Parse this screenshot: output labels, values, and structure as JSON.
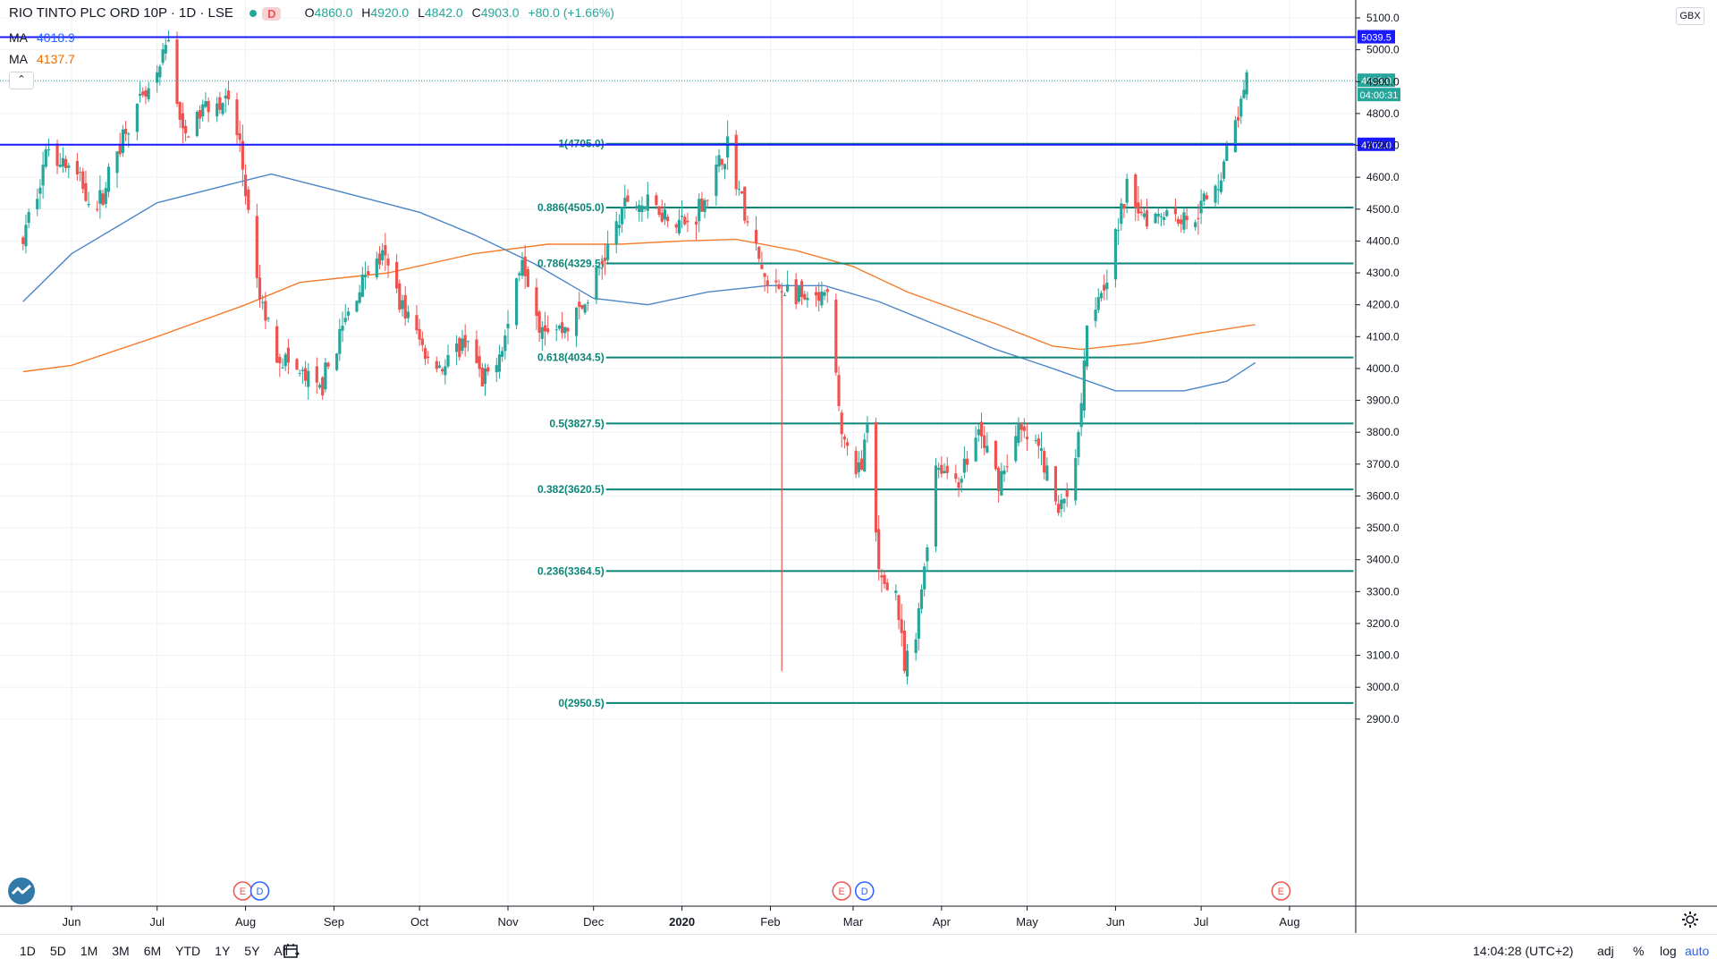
{
  "header": {
    "symbol": "RIO TINTO PLC ORD 10P · 1D · LSE",
    "badge": "D",
    "ohlc": {
      "o": "4860.0",
      "h": "4920.0",
      "l": "4842.0",
      "c": "4903.0",
      "chg": "+80.0 (+1.66%)"
    },
    "ma1": {
      "label": "MA",
      "value": "4018.9",
      "color": "#2962ff"
    },
    "ma2": {
      "label": "MA",
      "value": "4137.7",
      "color": "#ef6c00"
    },
    "collapse_icon": "chevron-up-icon"
  },
  "currency": "GBX",
  "colors": {
    "up": "#26a69a",
    "down": "#ef5350",
    "fib": "#0b8577",
    "hline": "#1a1aff",
    "ma_blue": "#4a86c8",
    "ma_orange": "#f57c2b",
    "grid": "#eef0f4"
  },
  "toolbar": {
    "ranges": [
      "1D",
      "5D",
      "1M",
      "3M",
      "6M",
      "YTD",
      "1Y",
      "5Y",
      "All"
    ],
    "time": "14:04:28 (UTC+2)",
    "adj": "adj",
    "pct": "%",
    "log": "log",
    "auto": "auto"
  },
  "chart_data": {
    "type": "candlestick",
    "ylim": [
      2870,
      5170
    ],
    "y_ticks": [
      2900,
      3000,
      3100,
      3200,
      3300,
      3400,
      3500,
      3600,
      3700,
      3800,
      3900,
      4000,
      4100,
      4200,
      4300,
      4400,
      4500,
      4600,
      4700,
      4800,
      4900,
      5000,
      5100
    ],
    "y_tick_labels": [
      "2900.0",
      "3000.0",
      "3100.0",
      "3200.0",
      "3300.0",
      "3400.0",
      "3500.0",
      "3600.0",
      "3700.0",
      "3800.0",
      "3900.0",
      "4000.0",
      "4100.0",
      "4200.0",
      "4300.0",
      "4400.0",
      "4500.0",
      "4600.0",
      "4700.0",
      "4800.0",
      "4900.0",
      "5000.0",
      "5100.0"
    ],
    "x_domain": [
      "2019-05-15",
      "2020-08-25"
    ],
    "x_ticks": [
      {
        "date": "2019-06-01",
        "label": "Jun"
      },
      {
        "date": "2019-07-01",
        "label": "Jul"
      },
      {
        "date": "2019-08-01",
        "label": "Aug"
      },
      {
        "date": "2019-09-01",
        "label": "Sep"
      },
      {
        "date": "2019-10-01",
        "label": "Oct"
      },
      {
        "date": "2019-11-01",
        "label": "Nov"
      },
      {
        "date": "2019-12-01",
        "label": "Dec"
      },
      {
        "date": "2020-01-01",
        "label": "2020"
      },
      {
        "date": "2020-02-01",
        "label": "Feb"
      },
      {
        "date": "2020-03-01",
        "label": "Mar"
      },
      {
        "date": "2020-04-01",
        "label": "Apr"
      },
      {
        "date": "2020-05-01",
        "label": "May"
      },
      {
        "date": "2020-06-01",
        "label": "Jun"
      },
      {
        "date": "2020-07-01",
        "label": "Jul"
      },
      {
        "date": "2020-08-01",
        "label": "Aug"
      }
    ],
    "price_path": [
      [
        "2019-05-15",
        4400
      ],
      [
        "2019-05-24",
        4700
      ],
      [
        "2019-06-03",
        4600
      ],
      [
        "2019-06-10",
        4500
      ],
      [
        "2019-06-20",
        4760
      ],
      [
        "2019-07-01",
        4900
      ],
      [
        "2019-07-05",
        5040
      ],
      [
        "2019-07-10",
        4720
      ],
      [
        "2019-07-20",
        4850
      ],
      [
        "2019-07-26",
        4830
      ],
      [
        "2019-07-30",
        4700
      ],
      [
        "2019-08-01",
        4550
      ],
      [
        "2019-08-05",
        4250
      ],
      [
        "2019-08-12",
        4050
      ],
      [
        "2019-08-20",
        3980
      ],
      [
        "2019-08-27",
        3930
      ],
      [
        "2019-09-05",
        4150
      ],
      [
        "2019-09-12",
        4300
      ],
      [
        "2019-09-18",
        4350
      ],
      [
        "2019-09-25",
        4200
      ],
      [
        "2019-10-03",
        4050
      ],
      [
        "2019-10-10",
        4000
      ],
      [
        "2019-10-18",
        4100
      ],
      [
        "2019-10-23",
        3940
      ],
      [
        "2019-10-31",
        4100
      ],
      [
        "2019-11-06",
        4360
      ],
      [
        "2019-11-12",
        4150
      ],
      [
        "2019-11-20",
        4120
      ],
      [
        "2019-11-28",
        4200
      ],
      [
        "2019-12-06",
        4380
      ],
      [
        "2019-12-13",
        4530
      ],
      [
        "2019-12-24",
        4500
      ],
      [
        "2020-01-03",
        4450
      ],
      [
        "2020-01-10",
        4550
      ],
      [
        "2020-01-17",
        4700
      ],
      [
        "2020-01-24",
        4450
      ],
      [
        "2020-01-31",
        4250
      ],
      [
        "2020-02-07",
        4250
      ],
      [
        "2020-02-14",
        4200
      ],
      [
        "2020-02-21",
        4220
      ],
      [
        "2020-02-26",
        3800
      ],
      [
        "2020-03-02",
        3650
      ],
      [
        "2020-03-06",
        3800
      ],
      [
        "2020-03-10",
        3350
      ],
      [
        "2020-03-16",
        3300
      ],
      [
        "2020-03-19",
        3050
      ],
      [
        "2020-03-23",
        3150
      ],
      [
        "2020-03-30",
        3700
      ],
      [
        "2020-04-07",
        3650
      ],
      [
        "2020-04-14",
        3800
      ],
      [
        "2020-04-21",
        3650
      ],
      [
        "2020-04-28",
        3800
      ],
      [
        "2020-05-05",
        3750
      ],
      [
        "2020-05-12",
        3550
      ],
      [
        "2020-05-18",
        3700
      ],
      [
        "2020-05-22",
        4150
      ],
      [
        "2020-05-29",
        4300
      ],
      [
        "2020-06-05",
        4560
      ],
      [
        "2020-06-12",
        4480
      ],
      [
        "2020-06-19",
        4500
      ],
      [
        "2020-06-26",
        4460
      ],
      [
        "2020-07-06",
        4560
      ],
      [
        "2020-07-10",
        4680
      ],
      [
        "2020-07-14",
        4800
      ],
      [
        "2020-07-16",
        4860
      ],
      [
        "2020-07-17",
        4903
      ]
    ],
    "ma_blue": [
      [
        "2019-05-15",
        4210
      ],
      [
        "2019-06-01",
        4360
      ],
      [
        "2019-07-01",
        4520
      ],
      [
        "2019-08-01",
        4590
      ],
      [
        "2019-08-10",
        4610
      ],
      [
        "2019-09-01",
        4560
      ],
      [
        "2019-10-01",
        4490
      ],
      [
        "2019-10-20",
        4420
      ],
      [
        "2019-11-10",
        4330
      ],
      [
        "2019-12-01",
        4220
      ],
      [
        "2019-12-20",
        4200
      ],
      [
        "2020-01-10",
        4240
      ],
      [
        "2020-01-31",
        4260
      ],
      [
        "2020-02-20",
        4260
      ],
      [
        "2020-03-10",
        4210
      ],
      [
        "2020-04-01",
        4130
      ],
      [
        "2020-04-20",
        4060
      ],
      [
        "2020-05-10",
        4000
      ],
      [
        "2020-06-01",
        3930
      ],
      [
        "2020-06-25",
        3930
      ],
      [
        "2020-07-10",
        3960
      ],
      [
        "2020-07-20",
        4018
      ]
    ],
    "ma_orange": [
      [
        "2019-05-15",
        3990
      ],
      [
        "2019-06-01",
        4010
      ],
      [
        "2019-07-01",
        4100
      ],
      [
        "2019-08-01",
        4200
      ],
      [
        "2019-08-20",
        4270
      ],
      [
        "2019-09-20",
        4300
      ],
      [
        "2019-10-20",
        4360
      ],
      [
        "2019-11-15",
        4390
      ],
      [
        "2019-12-10",
        4390
      ],
      [
        "2020-01-01",
        4400
      ],
      [
        "2020-01-20",
        4405
      ],
      [
        "2020-02-10",
        4370
      ],
      [
        "2020-03-01",
        4320
      ],
      [
        "2020-03-20",
        4240
      ],
      [
        "2020-04-20",
        4140
      ],
      [
        "2020-05-10",
        4070
      ],
      [
        "2020-05-20",
        4060
      ],
      [
        "2020-06-10",
        4080
      ],
      [
        "2020-06-30",
        4110
      ],
      [
        "2020-07-20",
        4138
      ]
    ],
    "horizontal_lines": [
      {
        "price": 5039.5,
        "label": "5039.5",
        "kind": "solid"
      },
      {
        "price": 4702.0,
        "label": "4702.0",
        "kind": "solid"
      },
      {
        "price": 4903.0,
        "label": "4903.0",
        "kind": "dotted"
      }
    ],
    "countdown": "04:00:31",
    "fib_levels": [
      {
        "price": 4705.0,
        "label": "1(4705.0)"
      },
      {
        "price": 4505.0,
        "label": "0.886(4505.0)"
      },
      {
        "price": 4329.5,
        "label": "0.786(4329.5)"
      },
      {
        "price": 4034.5,
        "label": "0.618(4034.5)"
      },
      {
        "price": 3827.5,
        "label": "0.5(3827.5)"
      },
      {
        "price": 3620.5,
        "label": "0.382(3620.5)"
      },
      {
        "price": 3364.5,
        "label": "0.236(3364.5)"
      },
      {
        "price": 2950.5,
        "label": "0(2950.5)"
      }
    ],
    "fib_x_range": [
      "2019-12-01",
      "2020-08-14"
    ],
    "events": [
      {
        "date": "2019-07-31",
        "label": "E",
        "type": "earnings"
      },
      {
        "date": "2019-08-06",
        "label": "D",
        "type": "dividend"
      },
      {
        "date": "2020-02-26",
        "label": "E",
        "type": "earnings"
      },
      {
        "date": "2020-03-05",
        "label": "D",
        "type": "dividend"
      },
      {
        "date": "2020-07-29",
        "label": "E",
        "type": "earnings"
      }
    ],
    "special_wick": {
      "date": "2020-02-05",
      "high": 4260,
      "low": 3050
    }
  }
}
